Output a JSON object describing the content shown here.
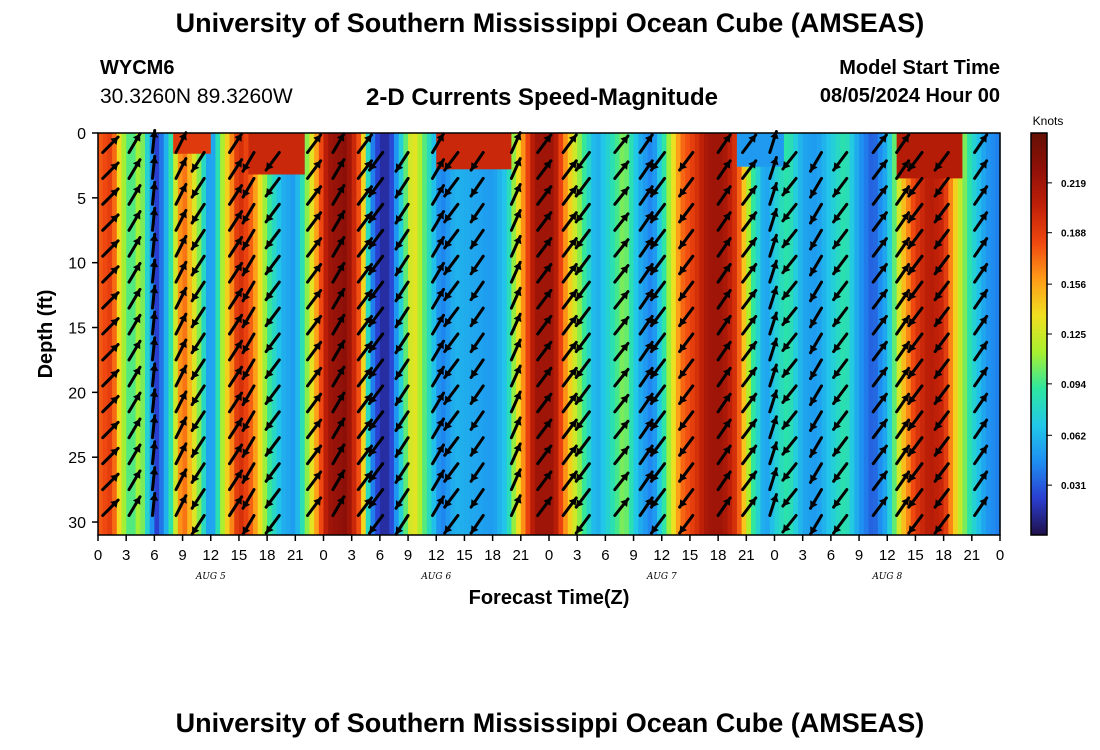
{
  "header": {
    "title": "University of Southern Mississippi Ocean Cube (AMSEAS)",
    "station_id": "WYCM6",
    "station_coords": "30.3260N  89.3260W",
    "subtitle": "2-D Currents Speed-Magnitude",
    "model_start_label": "Model Start Time",
    "model_start_value": "08/05/2024 Hour 00"
  },
  "footer": {
    "title": "University of Southern Mississippi Ocean Cube (AMSEAS)"
  },
  "chart_data": {
    "type": "heatmap",
    "title": "2-D Currents Speed-Magnitude",
    "xlabel": "Forecast Time(Z)",
    "ylabel": "Depth (ft)",
    "x_range_hours": [
      0,
      96
    ],
    "ylim": [
      0,
      31
    ],
    "x_ticks": [
      {
        "hour": 0,
        "label": "0"
      },
      {
        "hour": 3,
        "label": "3"
      },
      {
        "hour": 6,
        "label": "6"
      },
      {
        "hour": 9,
        "label": "9"
      },
      {
        "hour": 12,
        "label": "12"
      },
      {
        "hour": 15,
        "label": "15"
      },
      {
        "hour": 18,
        "label": "18"
      },
      {
        "hour": 21,
        "label": "21"
      },
      {
        "hour": 24,
        "label": "0"
      },
      {
        "hour": 27,
        "label": "3"
      },
      {
        "hour": 30,
        "label": "6"
      },
      {
        "hour": 33,
        "label": "9"
      },
      {
        "hour": 36,
        "label": "12"
      },
      {
        "hour": 39,
        "label": "15"
      },
      {
        "hour": 42,
        "label": "18"
      },
      {
        "hour": 45,
        "label": "21"
      },
      {
        "hour": 48,
        "label": "0"
      },
      {
        "hour": 51,
        "label": "3"
      },
      {
        "hour": 54,
        "label": "6"
      },
      {
        "hour": 57,
        "label": "9"
      },
      {
        "hour": 60,
        "label": "12"
      },
      {
        "hour": 63,
        "label": "15"
      },
      {
        "hour": 66,
        "label": "18"
      },
      {
        "hour": 69,
        "label": "21"
      },
      {
        "hour": 72,
        "label": "0"
      },
      {
        "hour": 75,
        "label": "3"
      },
      {
        "hour": 78,
        "label": "6"
      },
      {
        "hour": 81,
        "label": "9"
      },
      {
        "hour": 84,
        "label": "12"
      },
      {
        "hour": 87,
        "label": "15"
      },
      {
        "hour": 90,
        "label": "18"
      },
      {
        "hour": 93,
        "label": "21"
      },
      {
        "hour": 96,
        "label": "0"
      }
    ],
    "day_labels": [
      {
        "hour": 12,
        "label": "AUG 5"
      },
      {
        "hour": 36,
        "label": "AUG 6"
      },
      {
        "hour": 60,
        "label": "AUG 7"
      },
      {
        "hour": 84,
        "label": "AUG 8"
      }
    ],
    "y_ticks": [
      0,
      5,
      10,
      15,
      20,
      25,
      30
    ],
    "colorbar": {
      "label": "Knots",
      "min": 0.0,
      "max": 0.25,
      "ticks": [
        "0.031",
        "0.062",
        "0.094",
        "0.125",
        "0.156",
        "0.188",
        "0.219"
      ],
      "colors": [
        "#20104a",
        "#2a3ed0",
        "#1e8ef2",
        "#22c8e8",
        "#2ee6a0",
        "#a8f030",
        "#f0e020",
        "#ff9c18",
        "#f04810",
        "#c02008",
        "#901008",
        "#641004"
      ]
    },
    "speed_profile_by_hour": [
      [
        0,
        0.175
      ],
      [
        1.5,
        0.19
      ],
      [
        2.5,
        0.12
      ],
      [
        3.5,
        0.09
      ],
      [
        4.5,
        0.12
      ],
      [
        5.5,
        0.06
      ],
      [
        6.3,
        0.02
      ],
      [
        7.5,
        0.07
      ],
      [
        9,
        0.18
      ],
      [
        10.5,
        0.12
      ],
      [
        12,
        0.04
      ],
      [
        13.5,
        0.13
      ],
      [
        15,
        0.2
      ],
      [
        16.5,
        0.17
      ],
      [
        18,
        0.1
      ],
      [
        19.5,
        0.06
      ],
      [
        21,
        0.05
      ],
      [
        22.5,
        0.12
      ],
      [
        24.5,
        0.22
      ],
      [
        26.5,
        0.23
      ],
      [
        28,
        0.17
      ],
      [
        29,
        0.05
      ],
      [
        30,
        0.015
      ],
      [
        31,
        0.015
      ],
      [
        32,
        0.06
      ],
      [
        33.5,
        0.14
      ],
      [
        35,
        0.09
      ],
      [
        36.5,
        0.04
      ],
      [
        38,
        0.06
      ],
      [
        40,
        0.055
      ],
      [
        42,
        0.05
      ],
      [
        43.5,
        0.07
      ],
      [
        45,
        0.15
      ],
      [
        46.5,
        0.22
      ],
      [
        48.5,
        0.22
      ],
      [
        50,
        0.15
      ],
      [
        51.5,
        0.1
      ],
      [
        53,
        0.055
      ],
      [
        54.5,
        0.08
      ],
      [
        56,
        0.11
      ],
      [
        57.5,
        0.06
      ],
      [
        59,
        0.04
      ],
      [
        60.5,
        0.1
      ],
      [
        62,
        0.17
      ],
      [
        63.5,
        0.19
      ],
      [
        65,
        0.22
      ],
      [
        66.5,
        0.22
      ],
      [
        68,
        0.19
      ],
      [
        69.5,
        0.1
      ],
      [
        71,
        0.05
      ],
      [
        72.5,
        0.08
      ],
      [
        73.5,
        0.09
      ],
      [
        75,
        0.055
      ],
      [
        76.5,
        0.05
      ],
      [
        78,
        0.07
      ],
      [
        79.5,
        0.09
      ],
      [
        81,
        0.05
      ],
      [
        82.5,
        0.03
      ],
      [
        84,
        0.06
      ],
      [
        85.5,
        0.14
      ],
      [
        87,
        0.19
      ],
      [
        88.5,
        0.21
      ],
      [
        90,
        0.2
      ],
      [
        91.5,
        0.13
      ],
      [
        93,
        0.08
      ],
      [
        94.5,
        0.05
      ],
      [
        96,
        0.04
      ]
    ],
    "surface_overrides": [
      {
        "hour_start": 8,
        "hour_end": 12,
        "depth_max": 1.6,
        "speed": 0.19
      },
      {
        "hour_start": 16,
        "hour_end": 22,
        "depth_max": 3.2,
        "speed": 0.2
      },
      {
        "hour_start": 36,
        "hour_end": 44,
        "depth_max": 2.8,
        "speed": 0.2
      },
      {
        "hour_start": 68,
        "hour_end": 73,
        "depth_max": 2.6,
        "speed": 0.05
      },
      {
        "hour_start": 85,
        "hour_end": 92,
        "depth_max": 3.5,
        "speed": 0.21
      }
    ],
    "vector_depths": [
      0,
      2,
      4,
      6,
      8,
      10,
      12,
      14,
      16,
      18,
      20,
      22,
      24,
      26,
      28
    ],
    "vector_columns": [
      {
        "hour": 0.5,
        "u": 0.7,
        "v": 0.7
      },
      {
        "hour": 3.3,
        "u": 0.5,
        "v": 0.85
      },
      {
        "hour": 5.8,
        "u": 0.1,
        "v": 1.0
      },
      {
        "hour": 8.3,
        "u": 0.45,
        "v": 0.9
      },
      {
        "hour": 11.3,
        "u": -0.55,
        "v": -0.85
      },
      {
        "hour": 14.0,
        "u": 0.55,
        "v": 0.85
      },
      {
        "hour": 16.6,
        "u": -0.5,
        "v": -0.85
      },
      {
        "hour": 19.3,
        "u": -0.6,
        "v": -0.8
      },
      {
        "hour": 22.3,
        "u": 0.6,
        "v": 0.8
      },
      {
        "hour": 25.0,
        "u": 0.5,
        "v": 0.85
      },
      {
        "hour": 27.7,
        "u": 0.6,
        "v": 0.8
      },
      {
        "hour": 30.3,
        "u": -0.6,
        "v": -0.8
      },
      {
        "hour": 33.0,
        "u": -0.55,
        "v": -0.85
      },
      {
        "hour": 35.6,
        "u": 0.5,
        "v": 0.85
      },
      {
        "hour": 38.3,
        "u": -0.6,
        "v": -0.8
      },
      {
        "hour": 41.0,
        "u": -0.55,
        "v": -0.8
      },
      {
        "hour": 44.0,
        "u": 0.4,
        "v": 0.9
      },
      {
        "hour": 46.8,
        "u": 0.6,
        "v": 0.8
      },
      {
        "hour": 49.5,
        "u": 0.6,
        "v": 0.8
      },
      {
        "hour": 52.3,
        "u": -0.6,
        "v": -0.8
      },
      {
        "hour": 55.0,
        "u": 0.6,
        "v": 0.75
      },
      {
        "hour": 57.7,
        "u": 0.55,
        "v": 0.8
      },
      {
        "hour": 60.3,
        "u": -0.6,
        "v": -0.8
      },
      {
        "hour": 63.3,
        "u": -0.6,
        "v": -0.8
      },
      {
        "hour": 66.0,
        "u": 0.55,
        "v": 0.8
      },
      {
        "hour": 68.6,
        "u": 0.6,
        "v": 0.8
      },
      {
        "hour": 71.5,
        "u": 0.3,
        "v": 0.95
      },
      {
        "hour": 74.3,
        "u": -0.6,
        "v": -0.75
      },
      {
        "hour": 77.0,
        "u": -0.5,
        "v": -0.85
      },
      {
        "hour": 79.7,
        "u": -0.6,
        "v": -0.8
      },
      {
        "hour": 82.5,
        "u": 0.6,
        "v": 0.8
      },
      {
        "hour": 85.0,
        "u": 0.55,
        "v": 0.8
      },
      {
        "hour": 87.7,
        "u": -0.6,
        "v": -0.8
      },
      {
        "hour": 90.5,
        "u": -0.6,
        "v": -0.8
      },
      {
        "hour": 93.3,
        "u": 0.55,
        "v": 0.8
      }
    ]
  }
}
